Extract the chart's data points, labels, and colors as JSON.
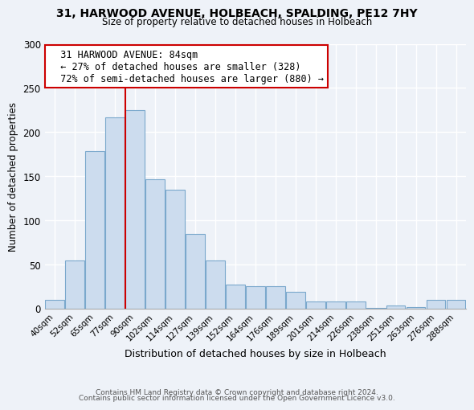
{
  "title": "31, HARWOOD AVENUE, HOLBEACH, SPALDING, PE12 7HY",
  "subtitle": "Size of property relative to detached houses in Holbeach",
  "xlabel": "Distribution of detached houses by size in Holbeach",
  "ylabel": "Number of detached properties",
  "bar_labels": [
    "40sqm",
    "52sqm",
    "65sqm",
    "77sqm",
    "90sqm",
    "102sqm",
    "114sqm",
    "127sqm",
    "139sqm",
    "152sqm",
    "164sqm",
    "176sqm",
    "189sqm",
    "201sqm",
    "214sqm",
    "226sqm",
    "238sqm",
    "251sqm",
    "263sqm",
    "276sqm",
    "288sqm"
  ],
  "bar_values": [
    10,
    55,
    178,
    217,
    225,
    147,
    135,
    85,
    55,
    27,
    25,
    25,
    19,
    8,
    8,
    8,
    1,
    4,
    2,
    10,
    10
  ],
  "bar_color": "#ccdcee",
  "bar_edge_color": "#7aa8cc",
  "vline_color": "#cc0000",
  "annotation_title": "31 HARWOOD AVENUE: 84sqm",
  "annotation_line1": "← 27% of detached houses are smaller (328)",
  "annotation_line2": "72% of semi-detached houses are larger (880) →",
  "annotation_box_color": "#ffffff",
  "annotation_box_edge": "#cc0000",
  "ylim": [
    0,
    300
  ],
  "yticks": [
    0,
    50,
    100,
    150,
    200,
    250,
    300
  ],
  "background_color": "#eef2f8",
  "footer1": "Contains HM Land Registry data © Crown copyright and database right 2024.",
  "footer2": "Contains public sector information licensed under the Open Government Licence v3.0."
}
